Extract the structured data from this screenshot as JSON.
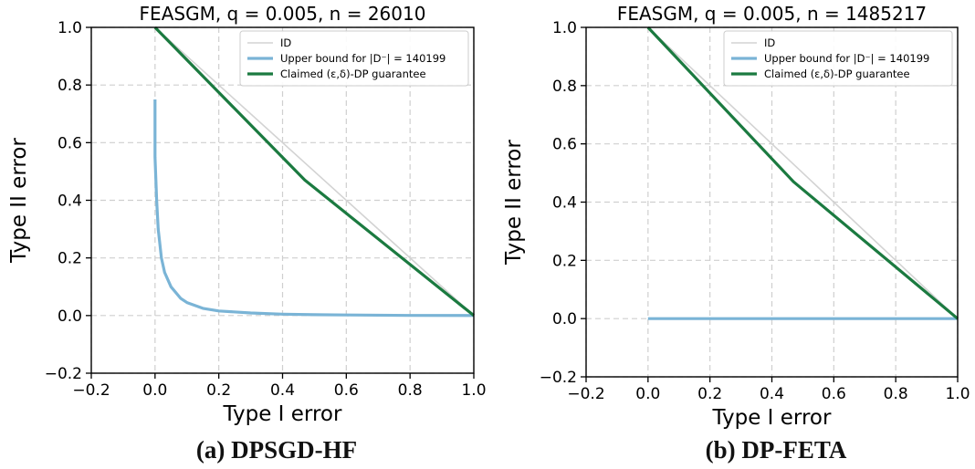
{
  "chart_data": [
    {
      "type": "line",
      "title": "FEASGM, q = 0.005, n = 26010",
      "xlabel": "Type I error",
      "ylabel": "Type II error",
      "xlim": [
        -0.2,
        1.0
      ],
      "ylim": [
        -0.2,
        1.0
      ],
      "xticks": [
        "−0.2",
        "0.0",
        "0.2",
        "0.4",
        "0.6",
        "0.8",
        "1.0"
      ],
      "yticks": [
        "−0.2",
        "0.0",
        "0.2",
        "0.4",
        "0.6",
        "0.8",
        "1.0"
      ],
      "grid": true,
      "legend_position": "top-right",
      "caption": "(a) DPSGD-HF",
      "series": [
        {
          "name": "ID",
          "color": "#d3d3d3",
          "x": [
            0,
            1
          ],
          "y": [
            1,
            0
          ]
        },
        {
          "name": "Upper bound for |D⁻| = 140199",
          "color": "#7ab4d6",
          "x": [
            0.0,
            0.0,
            0.005,
            0.01,
            0.02,
            0.03,
            0.05,
            0.08,
            0.1,
            0.15,
            0.2,
            0.3,
            0.4,
            0.5,
            0.6,
            0.8,
            1.0
          ],
          "y": [
            0.75,
            0.55,
            0.4,
            0.3,
            0.2,
            0.15,
            0.1,
            0.06,
            0.045,
            0.025,
            0.016,
            0.009,
            0.005,
            0.003,
            0.002,
            0.0005,
            0.0
          ]
        },
        {
          "name": "Claimed (ε,δ)-DP guarantee",
          "color": "#1b7a40",
          "x": [
            0.0,
            0.47,
            1.0
          ],
          "y": [
            1.0,
            0.47,
            0.0
          ]
        }
      ]
    },
    {
      "type": "line",
      "title": "FEASGM, q = 0.005, n = 1485217",
      "xlabel": "Type I error",
      "ylabel": "Type II error",
      "xlim": [
        -0.2,
        1.0
      ],
      "ylim": [
        -0.2,
        1.0
      ],
      "xticks": [
        "−0.2",
        "0.0",
        "0.2",
        "0.4",
        "0.6",
        "0.8",
        "1.0"
      ],
      "yticks": [
        "−0.2",
        "0.0",
        "0.2",
        "0.4",
        "0.6",
        "0.8",
        "1.0"
      ],
      "grid": true,
      "legend_position": "top-right",
      "caption": "(b) DP-FETA",
      "series": [
        {
          "name": "ID",
          "color": "#d3d3d3",
          "x": [
            0,
            1
          ],
          "y": [
            1,
            0
          ]
        },
        {
          "name": "Upper bound for |D⁻| = 140199",
          "color": "#7ab4d6",
          "x": [
            0.0,
            1.0
          ],
          "y": [
            0.0,
            0.0
          ]
        },
        {
          "name": "Claimed (ε,δ)-DP guarantee",
          "color": "#1b7a40",
          "x": [
            0.0,
            0.47,
            1.0
          ],
          "y": [
            1.0,
            0.47,
            0.0
          ]
        }
      ]
    }
  ]
}
